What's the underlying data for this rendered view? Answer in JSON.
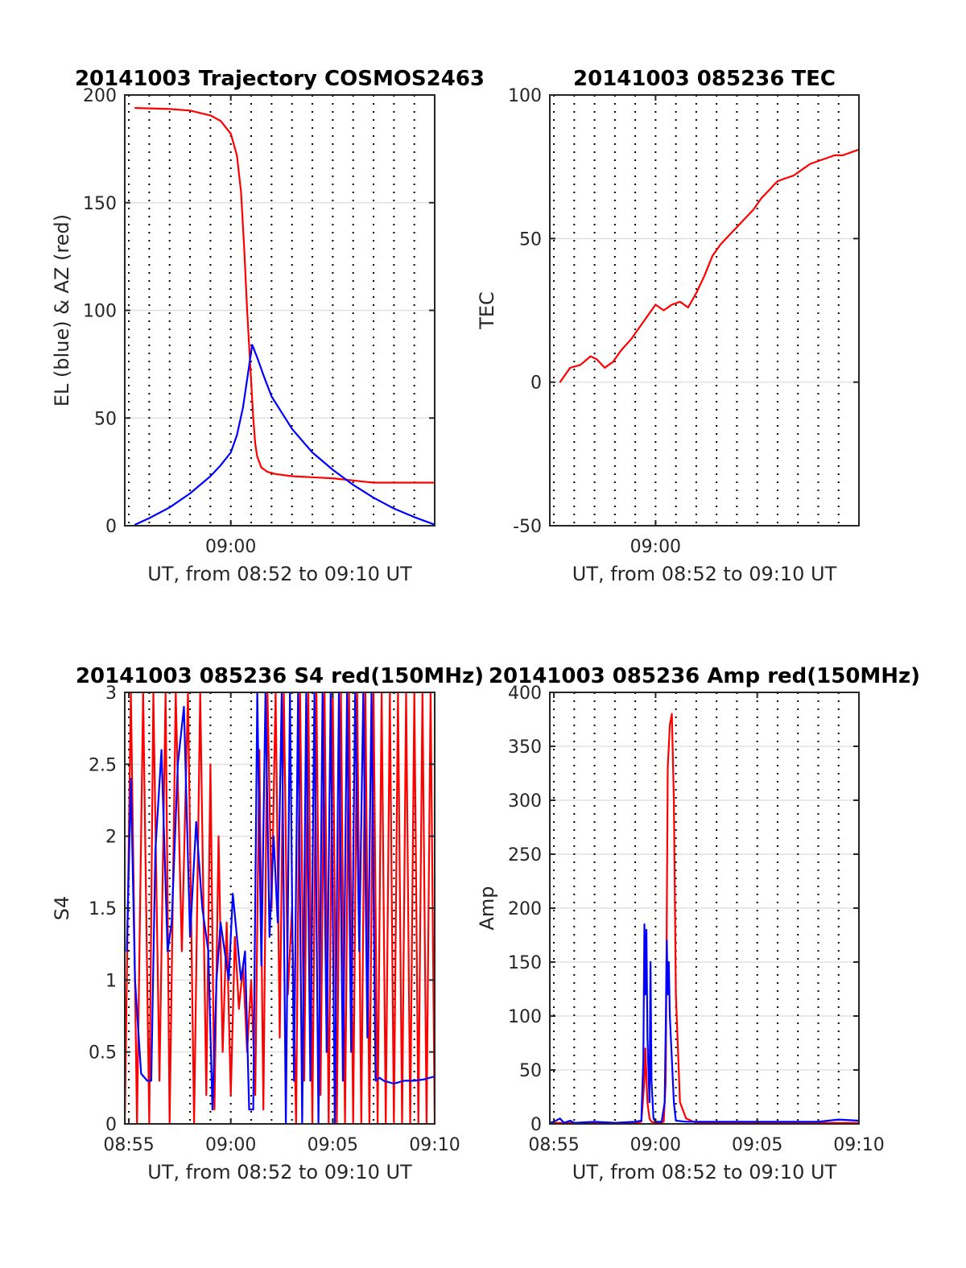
{
  "figure": {
    "background": "#ffffff"
  },
  "colors": {
    "red": "#ff0000",
    "blue": "#0000ff",
    "axis": "#262626",
    "grid": "#e0e0e0"
  },
  "chart_data": [
    {
      "type": "line",
      "title": "20141003 Trajectory COSMOS2463",
      "xlabel": "UT, from 08:52 to 09:10 UT",
      "ylabel": "EL (blue) & AZ (red)",
      "xlim": [
        2.8,
        18
      ],
      "ylim": [
        0,
        200
      ],
      "yticks": [
        0,
        50,
        100,
        150,
        200
      ],
      "yticklabels": [
        "0",
        "50",
        "100",
        "150",
        "200"
      ],
      "xticks": [
        8
      ],
      "xticklabels": [
        "09:00"
      ],
      "minute_lines": [
        3,
        4,
        5,
        6,
        7,
        8,
        9,
        10,
        11,
        12,
        13,
        14,
        15,
        16,
        17
      ],
      "series": [
        {
          "color": "red",
          "x": [
            3.3,
            5,
            6,
            7,
            7.5,
            8,
            8.3,
            8.5,
            8.65,
            8.8,
            8.95,
            9.1,
            9.2,
            9.3,
            9.5,
            9.8,
            10.2,
            11,
            12,
            13,
            14,
            14.5,
            15,
            16,
            17,
            18
          ],
          "y": [
            194,
            193.5,
            192.8,
            190.5,
            188,
            182,
            172,
            155,
            130,
            100,
            75,
            50,
            38,
            32,
            27,
            25,
            24,
            23,
            22.5,
            22,
            21,
            20.5,
            20,
            20,
            20,
            20
          ]
        },
        {
          "color": "blue",
          "x": [
            3.3,
            4,
            5,
            6,
            7,
            7.5,
            8,
            8.3,
            8.6,
            8.8,
            9.05,
            9.3,
            9.6,
            10,
            11,
            12,
            13,
            14,
            15,
            16,
            17,
            18
          ],
          "y": [
            0.5,
            3.5,
            8.5,
            15,
            23,
            28,
            34,
            42,
            55,
            68,
            84,
            78,
            70,
            60,
            45,
            34,
            26,
            19,
            13,
            8,
            4,
            0.5
          ]
        }
      ]
    },
    {
      "type": "line",
      "title": "20141003 085236 TEC",
      "xlabel": "UT, from 08:52 to 09:10 UT",
      "ylabel": "TEC",
      "xlim": [
        2.8,
        18
      ],
      "ylim": [
        -50,
        100
      ],
      "yticks": [
        -50,
        0,
        50,
        100
      ],
      "yticklabels": [
        "-50",
        "0",
        "50",
        "100"
      ],
      "xticks": [
        8
      ],
      "xticklabels": [
        "09:00"
      ],
      "minute_lines": [
        3,
        4,
        5,
        6,
        7,
        8,
        9,
        10,
        11,
        12,
        13,
        14,
        15,
        16,
        17
      ],
      "series": [
        {
          "color": "red",
          "x": [
            3.3,
            3.8,
            4.3,
            4.8,
            5.1,
            5.5,
            5.9,
            6.3,
            6.8,
            7.2,
            7.6,
            8.0,
            8.4,
            8.8,
            9.2,
            9.6,
            10.0,
            10.4,
            10.8,
            11.2,
            11.6,
            12.0,
            12.4,
            12.8,
            13.2,
            13.6,
            14.0,
            14.4,
            14.8,
            15.2,
            15.6,
            16.0,
            16.4,
            16.8,
            17.2,
            17.6,
            18.0
          ],
          "y": [
            0,
            5,
            6,
            9,
            8,
            5,
            7,
            11,
            15,
            19,
            23,
            27,
            25,
            27,
            28,
            26,
            31,
            37,
            44,
            48,
            51,
            54,
            57,
            60,
            64,
            67,
            70,
            71,
            72,
            74,
            76,
            77,
            78,
            79,
            79,
            80,
            81
          ]
        }
      ]
    },
    {
      "type": "line",
      "title": "20141003 085236 S4 red(150MHz)",
      "xlabel": "UT, from 08:52 to 09:10 UT",
      "ylabel": "S4",
      "xlim": [
        2.8,
        18
      ],
      "ylim": [
        0,
        3
      ],
      "yticks": [
        0,
        0.5,
        1,
        1.5,
        2,
        2.5,
        3
      ],
      "yticklabels": [
        "0",
        "0.5",
        "1",
        "1.5",
        "2",
        "2.5",
        "3"
      ],
      "xticks": [
        3,
        8,
        13,
        18
      ],
      "xticklabels": [
        "08:55",
        "09:00",
        "09:05",
        "09:10"
      ],
      "minute_lines": [
        3,
        4,
        5,
        6,
        7,
        8,
        9,
        10,
        11,
        12,
        13,
        14,
        15,
        16,
        17
      ],
      "series": [
        {
          "color": "red",
          "x": [
            2.8,
            3.1,
            3.4,
            3.7,
            4.0,
            4.2,
            4.5,
            4.8,
            5.0,
            5.3,
            5.6,
            5.9,
            6.2,
            6.5,
            6.8,
            7.0,
            7.2,
            7.4,
            7.6,
            7.8,
            8.0,
            8.2,
            8.4,
            8.6,
            8.8,
            9.0,
            9.2,
            9.4,
            9.6,
            9.8,
            10.0,
            10.2,
            10.4,
            10.6,
            10.8,
            11.0,
            11.2,
            11.4,
            11.6,
            11.8,
            12.0,
            12.2,
            12.4,
            12.6,
            12.8,
            13.0,
            13.2,
            13.4,
            13.6,
            13.8,
            14.0,
            14.2,
            14.4,
            14.6,
            14.8,
            15.0,
            15.2,
            15.4,
            15.6,
            15.8,
            16.0,
            16.2,
            16.4,
            16.6,
            16.8,
            17.0,
            17.2,
            17.4,
            17.6,
            17.8,
            18.0
          ],
          "y": [
            0,
            3,
            0,
            3,
            0,
            3,
            0.3,
            3,
            0,
            3,
            1.2,
            3,
            0,
            3,
            0.2,
            2.5,
            0.1,
            2,
            0.5,
            1.4,
            0.2,
            1.3,
            0.8,
            1.1,
            0.5,
            1.0,
            0.2,
            2.6,
            0.1,
            3,
            1.5,
            3,
            0.6,
            3,
            0.9,
            1.5,
            0,
            3,
            0.3,
            3,
            0,
            3,
            0.2,
            3,
            0,
            3,
            0,
            3,
            0,
            3,
            0,
            3,
            0,
            3,
            0,
            3,
            0,
            3,
            0,
            3,
            0,
            3,
            0,
            3,
            0,
            3,
            0,
            3,
            0,
            3,
            0
          ]
        },
        {
          "color": "blue",
          "x": [
            2.9,
            3.1,
            3.3,
            3.6,
            3.9,
            4.1,
            4.3,
            4.6,
            4.9,
            5.1,
            5.4,
            5.7,
            6.0,
            6.3,
            6.6,
            6.9,
            7.1,
            7.3,
            7.5,
            7.7,
            7.9,
            8.1,
            8.3,
            8.5,
            8.7,
            8.9,
            9.1,
            9.3,
            9.5,
            9.7,
            9.9,
            10.1,
            10.3,
            10.5,
            10.7,
            10.9,
            11.1,
            11.3,
            11.5,
            11.7,
            11.9,
            12.1,
            12.3,
            12.5,
            12.7,
            12.9,
            13.1,
            13.3,
            13.5,
            13.7,
            13.9,
            14.1,
            14.3,
            14.5,
            14.7,
            14.9,
            15.1,
            15.3,
            15.5,
            16.0,
            16.5,
            17.0,
            17.5,
            18.0
          ],
          "y": [
            1.2,
            2.4,
            1.0,
            0.35,
            0.3,
            0.3,
            1.9,
            2.6,
            1.2,
            1.4,
            2.5,
            2.9,
            1.3,
            2.1,
            1.5,
            1.2,
            0.1,
            1.0,
            1.4,
            1.2,
            1.0,
            1.6,
            1.3,
            1.0,
            1.2,
            0.1,
            0.1,
            3,
            1.1,
            3,
            1.3,
            2.0,
            1.4,
            3,
            0,
            3,
            0.3,
            3,
            0,
            3,
            0.3,
            3,
            0,
            3,
            0.5,
            3,
            0,
            3,
            0.3,
            3,
            0.5,
            3,
            1.2,
            3,
            0.6,
            3,
            0.3,
            0.32,
            0.3,
            0.28,
            0.3,
            0.3,
            0.31,
            0.33
          ]
        }
      ]
    },
    {
      "type": "line",
      "title": "20141003 085236 Amp red(150MHz)",
      "xlabel": "UT, from 08:52 to 09:10 UT",
      "ylabel": "Amp",
      "xlim": [
        2.8,
        18
      ],
      "ylim": [
        0,
        400
      ],
      "yticks": [
        0,
        50,
        100,
        150,
        200,
        250,
        300,
        350,
        400
      ],
      "yticklabels": [
        "0",
        "50",
        "100",
        "150",
        "200",
        "250",
        "300",
        "350",
        "400"
      ],
      "xticks": [
        3,
        8,
        13,
        18
      ],
      "xticklabels": [
        "08:55",
        "09:00",
        "09:05",
        "09:10"
      ],
      "minute_lines": [
        3,
        4,
        5,
        6,
        7,
        8,
        9,
        10,
        11,
        12,
        13,
        14,
        15,
        16,
        17
      ],
      "series": [
        {
          "color": "red",
          "x": [
            2.8,
            4.0,
            5.0,
            6.0,
            7.0,
            7.3,
            7.45,
            7.5,
            7.6,
            7.7,
            7.8,
            8.0,
            8.2,
            8.4,
            8.5,
            8.6,
            8.7,
            8.8,
            8.9,
            9.0,
            9.2,
            9.5,
            10,
            12,
            14,
            16,
            18
          ],
          "y": [
            1,
            1,
            1,
            1,
            1,
            2,
            40,
            70,
            20,
            5,
            2,
            1,
            1,
            2,
            40,
            330,
            370,
            380,
            300,
            120,
            20,
            5,
            1,
            1,
            1,
            1,
            1
          ]
        },
        {
          "color": "blue",
          "x": [
            2.8,
            3.0,
            3.3,
            3.5,
            3.8,
            4.0,
            5.0,
            6.0,
            7.0,
            7.3,
            7.4,
            7.45,
            7.5,
            7.55,
            7.6,
            7.7,
            7.75,
            7.8,
            7.9,
            8.0,
            8.3,
            8.45,
            8.5,
            8.55,
            8.6,
            8.65,
            8.7,
            8.8,
            8.9,
            9.0,
            9.5,
            10,
            12,
            14,
            16,
            17,
            18
          ],
          "y": [
            1,
            2,
            5,
            1,
            3,
            1,
            2,
            1,
            2,
            3,
            60,
            185,
            120,
            180,
            80,
            20,
            150,
            40,
            5,
            2,
            2,
            20,
            90,
            170,
            120,
            150,
            100,
            60,
            20,
            3,
            2,
            2,
            2,
            2,
            2,
            4,
            3
          ]
        }
      ]
    }
  ]
}
